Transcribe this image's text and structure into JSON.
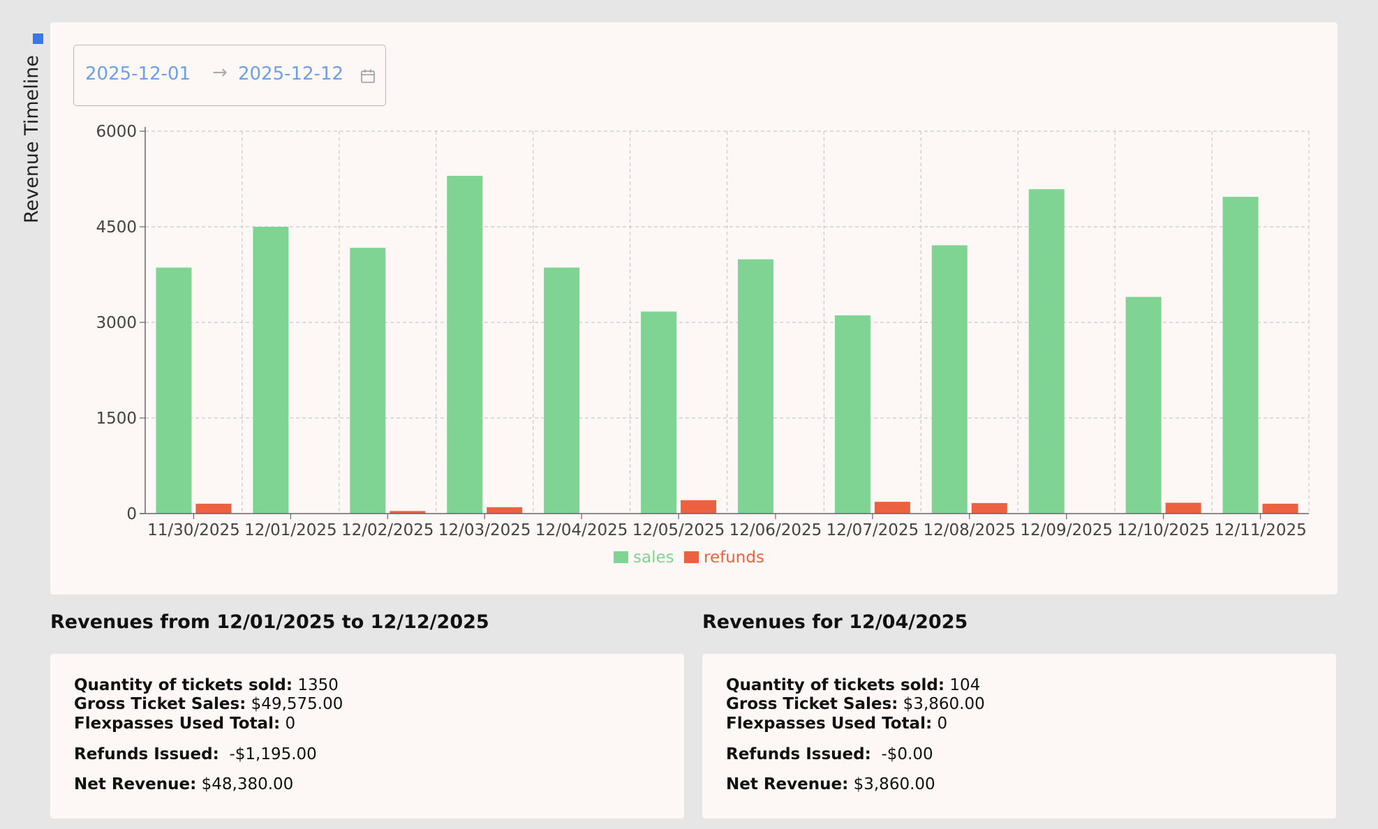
{
  "page_title": "Revenue Timeline",
  "date_range": {
    "start": "2025-12-01",
    "end": "2025-12-12",
    "separator": "→"
  },
  "colors": {
    "sales": "#7fd494",
    "refunds": "#ec6240",
    "accent": "#3b78e7",
    "date_text": "#6ba0e6"
  },
  "chart_data": {
    "type": "bar",
    "categories": [
      "11/30/2025",
      "12/01/2025",
      "12/02/2025",
      "12/03/2025",
      "12/04/2025",
      "12/05/2025",
      "12/06/2025",
      "12/07/2025",
      "12/08/2025",
      "12/09/2025",
      "12/10/2025",
      "12/11/2025"
    ],
    "series": [
      {
        "name": "sales",
        "values": [
          3860,
          4500,
          4170,
          5300,
          3860,
          3170,
          3990,
          3110,
          4210,
          5090,
          3400,
          4970
        ]
      },
      {
        "name": "refunds",
        "values": [
          155,
          0,
          40,
          100,
          0,
          210,
          0,
          185,
          165,
          0,
          170,
          155
        ]
      }
    ],
    "ylim": [
      0,
      6000
    ],
    "yticks": [
      "0",
      "1500",
      "3000",
      "4500",
      "6000"
    ],
    "grid": true,
    "legend_position": "bottom-center"
  },
  "summaries": [
    {
      "title": "Revenues from 12/01/2025 to 12/12/2025",
      "tickets_label": "Quantity of tickets sold:",
      "tickets_value": "1350",
      "gross_label": "Gross Ticket Sales:",
      "gross_value": "$49,575.00",
      "flex_label": "Flexpasses Used Total:",
      "flex_value": "0",
      "refunds_label": "Refunds Issued:",
      "refunds_value": "-$1,195.00",
      "net_label": "Net Revenue:",
      "net_value": "$48,380.00"
    },
    {
      "title": "Revenues for 12/04/2025",
      "tickets_label": "Quantity of tickets sold:",
      "tickets_value": "104",
      "gross_label": "Gross Ticket Sales:",
      "gross_value": "$3,860.00",
      "flex_label": "Flexpasses Used Total:",
      "flex_value": "0",
      "refunds_label": "Refunds Issued:",
      "refunds_value": "-$0.00",
      "net_label": "Net Revenue:",
      "net_value": "$3,860.00"
    }
  ]
}
